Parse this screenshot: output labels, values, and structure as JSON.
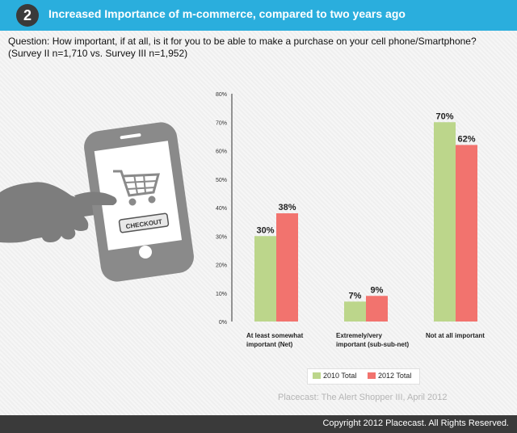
{
  "header": {
    "number": "2",
    "title": "Increased Importance of m-commerce, compared to two years ago"
  },
  "question": {
    "line1": "Question: How important, if at all, is it for you to be able to make a purchase on your cell phone/Smartphone?",
    "line2": "(Survey II n=1,710 vs. Survey III n=1,952)"
  },
  "illustration": {
    "button_label": "CHECKOUT",
    "icons": [
      "smartphone-icon",
      "shopping-cart-icon",
      "pointing-hand-icon"
    ]
  },
  "chart_data": {
    "type": "bar",
    "categories": [
      [
        "At least somewhat",
        "important (Net)"
      ],
      [
        "Extremely/very",
        "important (sub-sub-net)"
      ],
      [
        "Not at all important"
      ]
    ],
    "series": [
      {
        "name": "2010 Total",
        "values": [
          30,
          7,
          70
        ],
        "color": "#bcd68b"
      },
      {
        "name": "2012 Total",
        "values": [
          38,
          9,
          62
        ],
        "color": "#f2736e"
      }
    ],
    "ylim": [
      0,
      80
    ],
    "yticks": [
      "0%",
      "10%",
      "20%",
      "30%",
      "40%",
      "50%",
      "60%",
      "70%",
      "80%"
    ],
    "value_labels": [
      [
        "30%",
        "7%",
        "70%"
      ],
      [
        "38%",
        "9%",
        "62%"
      ]
    ],
    "legend_position": "bottom"
  },
  "source": "Placecast: The Alert Shopper III, April 2012",
  "footer": {
    "copyright": "Copyright 2012 Placecast. All Rights Reserved."
  }
}
